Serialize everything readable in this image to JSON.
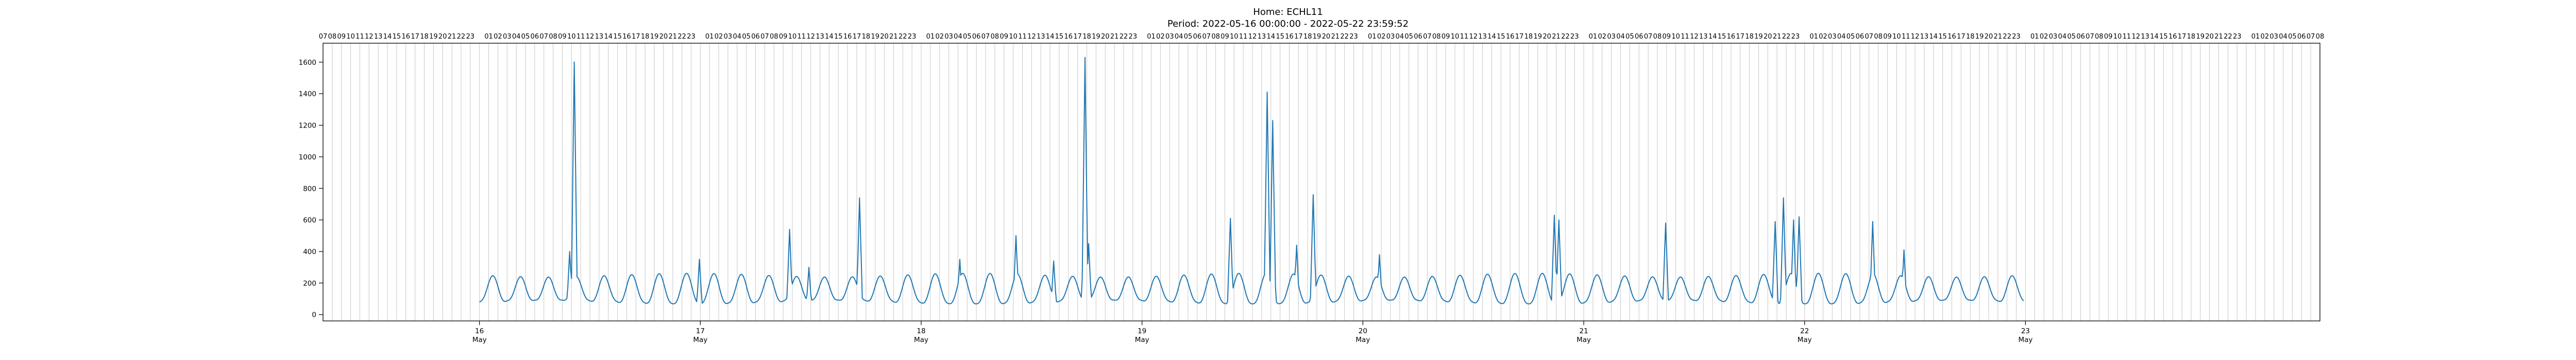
{
  "chart_data": {
    "type": "line",
    "title": "Home: ECHL11",
    "subtitle": "Period: 2022-05-16 00:00:00 - 2022-05-22 23:59:52",
    "xlabel": "",
    "ylabel": "",
    "x_unit": "hours since 2022-05-16 00:00",
    "xlim": [
      -17,
      200
    ],
    "ylim": [
      -40,
      1720
    ],
    "yticks": [
      0,
      200,
      400,
      600,
      800,
      1000,
      1200,
      1400,
      1600
    ],
    "xticks": [
      {
        "day": "16",
        "month": "May",
        "hour": 0
      },
      {
        "day": "17",
        "month": "May",
        "hour": 24
      },
      {
        "day": "18",
        "month": "May",
        "hour": 48
      },
      {
        "day": "19",
        "month": "May",
        "hour": 72
      },
      {
        "day": "20",
        "month": "May",
        "hour": 96
      },
      {
        "day": "21",
        "month": "May",
        "hour": 120
      },
      {
        "day": "22",
        "month": "May",
        "hour": 144
      },
      {
        "day": "23",
        "month": "May",
        "hour": 168
      }
    ],
    "top_axis_hour_labels": true,
    "hour_gridlines": true,
    "legend": "none",
    "line_color": "#1f77b4",
    "baseline_period_hours": 3,
    "baseline_min": 80,
    "baseline_max": 250,
    "series": [
      {
        "name": "",
        "spikes": [
          {
            "x": 10.3,
            "y": 1600
          },
          {
            "x": 9.8,
            "y": 400
          },
          {
            "x": 23.9,
            "y": 350
          },
          {
            "x": 33.7,
            "y": 540
          },
          {
            "x": 35.8,
            "y": 300
          },
          {
            "x": 41.3,
            "y": 740
          },
          {
            "x": 52.2,
            "y": 350
          },
          {
            "x": 58.3,
            "y": 500
          },
          {
            "x": 62.4,
            "y": 340
          },
          {
            "x": 65.8,
            "y": 1630
          },
          {
            "x": 66.2,
            "y": 450
          },
          {
            "x": 81.6,
            "y": 610
          },
          {
            "x": 85.6,
            "y": 1410
          },
          {
            "x": 86.2,
            "y": 1230
          },
          {
            "x": 88.8,
            "y": 440
          },
          {
            "x": 90.6,
            "y": 760
          },
          {
            "x": 97.8,
            "y": 380
          },
          {
            "x": 116.8,
            "y": 630
          },
          {
            "x": 117.3,
            "y": 600
          },
          {
            "x": 128.9,
            "y": 580
          },
          {
            "x": 140.8,
            "y": 590
          },
          {
            "x": 141.7,
            "y": 740
          },
          {
            "x": 142.8,
            "y": 600
          },
          {
            "x": 143.4,
            "y": 620
          },
          {
            "x": 151.4,
            "y": 590
          },
          {
            "x": 154.8,
            "y": 410
          }
        ]
      }
    ]
  }
}
